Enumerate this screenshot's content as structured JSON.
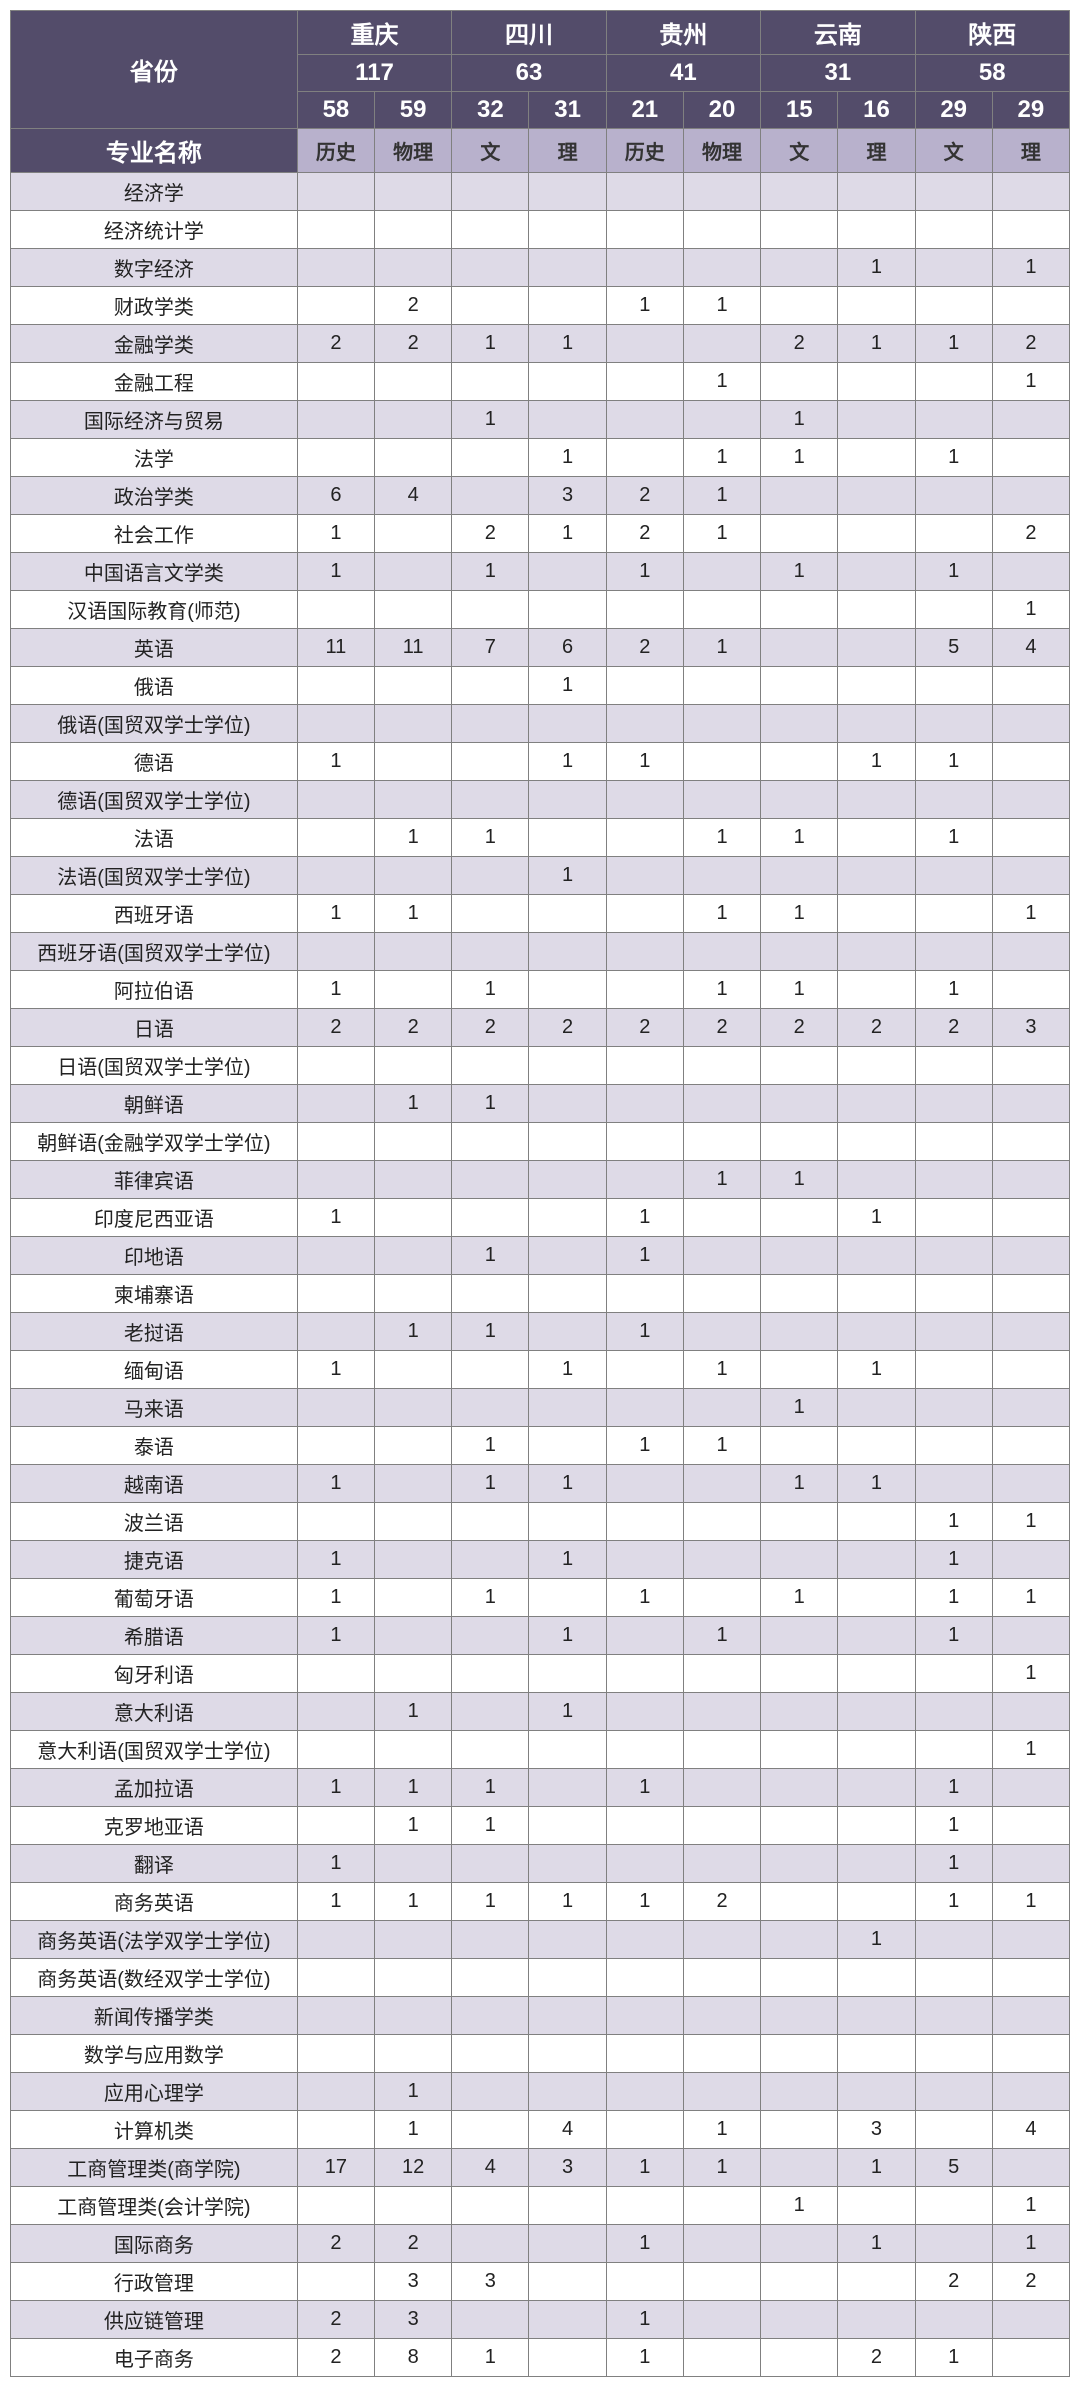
{
  "header": {
    "province_label": "省份",
    "major_label": "专业名称",
    "provinces": [
      {
        "name": "重庆",
        "total": "117",
        "sub": [
          {
            "n": "58",
            "t": "历史"
          },
          {
            "n": "59",
            "t": "物理"
          }
        ]
      },
      {
        "name": "四川",
        "total": "63",
        "sub": [
          {
            "n": "32",
            "t": "文"
          },
          {
            "n": "31",
            "t": "理"
          }
        ]
      },
      {
        "name": "贵州",
        "total": "41",
        "sub": [
          {
            "n": "21",
            "t": "历史"
          },
          {
            "n": "20",
            "t": "物理"
          }
        ]
      },
      {
        "name": "云南",
        "total": "31",
        "sub": [
          {
            "n": "15",
            "t": "文"
          },
          {
            "n": "16",
            "t": "理"
          }
        ]
      },
      {
        "name": "陕西",
        "total": "58",
        "sub": [
          {
            "n": "29",
            "t": "文"
          },
          {
            "n": "29",
            "t": "理"
          }
        ]
      }
    ]
  },
  "rows": [
    {
      "m": "经济学",
      "v": [
        "",
        "",
        "",
        "",
        "",
        "",
        "",
        "",
        "",
        ""
      ]
    },
    {
      "m": "经济统计学",
      "v": [
        "",
        "",
        "",
        "",
        "",
        "",
        "",
        "",
        "",
        ""
      ]
    },
    {
      "m": "数字经济",
      "v": [
        "",
        "",
        "",
        "",
        "",
        "",
        "",
        "1",
        "",
        "1"
      ]
    },
    {
      "m": "财政学类",
      "v": [
        "",
        "2",
        "",
        "",
        "1",
        "1",
        "",
        "",
        "",
        ""
      ]
    },
    {
      "m": "金融学类",
      "v": [
        "2",
        "2",
        "1",
        "1",
        "",
        "",
        "2",
        "1",
        "1",
        "2"
      ]
    },
    {
      "m": "金融工程",
      "v": [
        "",
        "",
        "",
        "",
        "",
        "1",
        "",
        "",
        "",
        "1"
      ]
    },
    {
      "m": "国际经济与贸易",
      "v": [
        "",
        "",
        "1",
        "",
        "",
        "",
        "1",
        "",
        "",
        ""
      ]
    },
    {
      "m": "法学",
      "v": [
        "",
        "",
        "",
        "1",
        "",
        "1",
        "1",
        "",
        "1",
        ""
      ]
    },
    {
      "m": "政治学类",
      "v": [
        "6",
        "4",
        "",
        "3",
        "2",
        "1",
        "",
        "",
        "",
        ""
      ]
    },
    {
      "m": "社会工作",
      "v": [
        "1",
        "",
        "2",
        "1",
        "2",
        "1",
        "",
        "",
        "",
        "2"
      ]
    },
    {
      "m": "中国语言文学类",
      "v": [
        "1",
        "",
        "1",
        "",
        "1",
        "",
        "1",
        "",
        "1",
        ""
      ]
    },
    {
      "m": "汉语国际教育(师范)",
      "v": [
        "",
        "",
        "",
        "",
        "",
        "",
        "",
        "",
        "",
        "1"
      ]
    },
    {
      "m": "英语",
      "v": [
        "11",
        "11",
        "7",
        "6",
        "2",
        "1",
        "",
        "",
        "5",
        "4"
      ]
    },
    {
      "m": "俄语",
      "v": [
        "",
        "",
        "",
        "1",
        "",
        "",
        "",
        "",
        "",
        ""
      ]
    },
    {
      "m": "俄语(国贸双学士学位)",
      "v": [
        "",
        "",
        "",
        "",
        "",
        "",
        "",
        "",
        "",
        ""
      ]
    },
    {
      "m": "德语",
      "v": [
        "1",
        "",
        "",
        "1",
        "1",
        "",
        "",
        "1",
        "1",
        ""
      ]
    },
    {
      "m": "德语(国贸双学士学位)",
      "v": [
        "",
        "",
        "",
        "",
        "",
        "",
        "",
        "",
        "",
        ""
      ]
    },
    {
      "m": "法语",
      "v": [
        "",
        "1",
        "1",
        "",
        "",
        "1",
        "1",
        "",
        "1",
        ""
      ]
    },
    {
      "m": "法语(国贸双学士学位)",
      "v": [
        "",
        "",
        "",
        "1",
        "",
        "",
        "",
        "",
        "",
        ""
      ]
    },
    {
      "m": "西班牙语",
      "v": [
        "1",
        "1",
        "",
        "",
        "",
        "1",
        "1",
        "",
        "",
        "1"
      ]
    },
    {
      "m": "西班牙语(国贸双学士学位)",
      "v": [
        "",
        "",
        "",
        "",
        "",
        "",
        "",
        "",
        "",
        ""
      ]
    },
    {
      "m": "阿拉伯语",
      "v": [
        "1",
        "",
        "1",
        "",
        "",
        "1",
        "1",
        "",
        "1",
        ""
      ]
    },
    {
      "m": "日语",
      "v": [
        "2",
        "2",
        "2",
        "2",
        "2",
        "2",
        "2",
        "2",
        "2",
        "3"
      ]
    },
    {
      "m": "日语(国贸双学士学位)",
      "v": [
        "",
        "",
        "",
        "",
        "",
        "",
        "",
        "",
        "",
        ""
      ]
    },
    {
      "m": "朝鲜语",
      "v": [
        "",
        "1",
        "1",
        "",
        "",
        "",
        "",
        "",
        "",
        ""
      ]
    },
    {
      "m": "朝鲜语(金融学双学士学位)",
      "v": [
        "",
        "",
        "",
        "",
        "",
        "",
        "",
        "",
        "",
        ""
      ]
    },
    {
      "m": "菲律宾语",
      "v": [
        "",
        "",
        "",
        "",
        "",
        "1",
        "1",
        "",
        "",
        ""
      ]
    },
    {
      "m": "印度尼西亚语",
      "v": [
        "1",
        "",
        "",
        "",
        "1",
        "",
        "",
        "1",
        "",
        ""
      ]
    },
    {
      "m": "印地语",
      "v": [
        "",
        "",
        "1",
        "",
        "1",
        "",
        "",
        "",
        "",
        ""
      ]
    },
    {
      "m": "柬埔寨语",
      "v": [
        "",
        "",
        "",
        "",
        "",
        "",
        "",
        "",
        "",
        ""
      ]
    },
    {
      "m": "老挝语",
      "v": [
        "",
        "1",
        "1",
        "",
        "1",
        "",
        "",
        "",
        "",
        ""
      ]
    },
    {
      "m": "缅甸语",
      "v": [
        "1",
        "",
        "",
        "1",
        "",
        "1",
        "",
        "1",
        "",
        ""
      ]
    },
    {
      "m": "马来语",
      "v": [
        "",
        "",
        "",
        "",
        "",
        "",
        "1",
        "",
        "",
        ""
      ]
    },
    {
      "m": "泰语",
      "v": [
        "",
        "",
        "1",
        "",
        "1",
        "1",
        "",
        "",
        "",
        ""
      ]
    },
    {
      "m": "越南语",
      "v": [
        "1",
        "",
        "1",
        "1",
        "",
        "",
        "1",
        "1",
        "",
        ""
      ]
    },
    {
      "m": "波兰语",
      "v": [
        "",
        "",
        "",
        "",
        "",
        "",
        "",
        "",
        "1",
        "1"
      ]
    },
    {
      "m": "捷克语",
      "v": [
        "1",
        "",
        "",
        "1",
        "",
        "",
        "",
        "",
        "1",
        ""
      ]
    },
    {
      "m": "葡萄牙语",
      "v": [
        "1",
        "",
        "1",
        "",
        "1",
        "",
        "1",
        "",
        "1",
        "1"
      ]
    },
    {
      "m": "希腊语",
      "v": [
        "1",
        "",
        "",
        "1",
        "",
        "1",
        "",
        "",
        "1",
        ""
      ]
    },
    {
      "m": "匈牙利语",
      "v": [
        "",
        "",
        "",
        "",
        "",
        "",
        "",
        "",
        "",
        "1"
      ]
    },
    {
      "m": "意大利语",
      "v": [
        "",
        "1",
        "",
        "1",
        "",
        "",
        "",
        "",
        "",
        ""
      ]
    },
    {
      "m": "意大利语(国贸双学士学位)",
      "v": [
        "",
        "",
        "",
        "",
        "",
        "",
        "",
        "",
        "",
        "1"
      ]
    },
    {
      "m": "孟加拉语",
      "v": [
        "1",
        "1",
        "1",
        "",
        "1",
        "",
        "",
        "",
        "1",
        ""
      ]
    },
    {
      "m": "克罗地亚语",
      "v": [
        "",
        "1",
        "1",
        "",
        "",
        "",
        "",
        "",
        "1",
        ""
      ]
    },
    {
      "m": "翻译",
      "v": [
        "1",
        "",
        "",
        "",
        "",
        "",
        "",
        "",
        "1",
        ""
      ]
    },
    {
      "m": "商务英语",
      "v": [
        "1",
        "1",
        "1",
        "1",
        "1",
        "2",
        "",
        "",
        "1",
        "1"
      ]
    },
    {
      "m": "商务英语(法学双学士学位)",
      "v": [
        "",
        "",
        "",
        "",
        "",
        "",
        "",
        "1",
        "",
        ""
      ]
    },
    {
      "m": "商务英语(数经双学士学位)",
      "v": [
        "",
        "",
        "",
        "",
        "",
        "",
        "",
        "",
        "",
        ""
      ]
    },
    {
      "m": "新闻传播学类",
      "v": [
        "",
        "",
        "",
        "",
        "",
        "",
        "",
        "",
        "",
        ""
      ]
    },
    {
      "m": "数学与应用数学",
      "v": [
        "",
        "",
        "",
        "",
        "",
        "",
        "",
        "",
        "",
        ""
      ]
    },
    {
      "m": "应用心理学",
      "v": [
        "",
        "1",
        "",
        "",
        "",
        "",
        "",
        "",
        "",
        ""
      ]
    },
    {
      "m": "计算机类",
      "v": [
        "",
        "1",
        "",
        "4",
        "",
        "1",
        "",
        "3",
        "",
        "4"
      ]
    },
    {
      "m": "工商管理类(商学院)",
      "v": [
        "17",
        "12",
        "4",
        "3",
        "1",
        "1",
        "",
        "1",
        "5",
        ""
      ]
    },
    {
      "m": "工商管理类(会计学院)",
      "v": [
        "",
        "",
        "",
        "",
        "",
        "",
        "1",
        "",
        "",
        "1"
      ]
    },
    {
      "m": "国际商务",
      "v": [
        "2",
        "2",
        "",
        "",
        "1",
        "",
        "",
        "1",
        "",
        "1"
      ]
    },
    {
      "m": "行政管理",
      "v": [
        "",
        "3",
        "3",
        "",
        "",
        "",
        "",
        "",
        "2",
        "2"
      ]
    },
    {
      "m": "供应链管理",
      "v": [
        "2",
        "3",
        "",
        "",
        "1",
        "",
        "",
        "",
        "",
        ""
      ]
    },
    {
      "m": "电子商务",
      "v": [
        "2",
        "8",
        "1",
        "",
        "1",
        "",
        "",
        "2",
        "1",
        ""
      ]
    }
  ],
  "colors": {
    "header_bg": "#534c6a",
    "header_fg": "#ffffff",
    "sub_bg": "#b8b1cc",
    "alt_bg": "#dedae7",
    "plain_bg": "#ffffff",
    "border": "#808080"
  }
}
